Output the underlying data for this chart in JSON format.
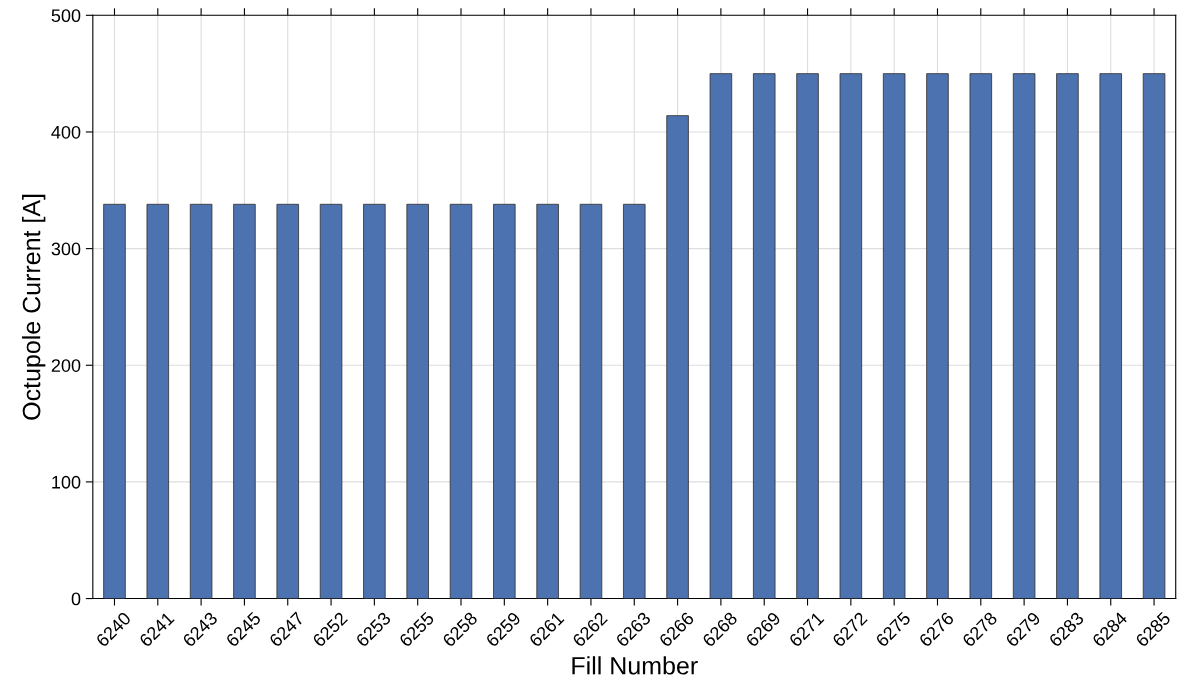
{
  "chart_data": {
    "type": "bar",
    "xlabel": "Fill Number",
    "ylabel": "Octupole Current [A]",
    "categories": [
      "6240",
      "6241",
      "6243",
      "6245",
      "6247",
      "6252",
      "6253",
      "6255",
      "6258",
      "6259",
      "6261",
      "6262",
      "6263",
      "6266",
      "6268",
      "6269",
      "6271",
      "6272",
      "6275",
      "6276",
      "6278",
      "6279",
      "6283",
      "6284",
      "6285"
    ],
    "values": [
      338,
      338,
      338,
      338,
      338,
      338,
      338,
      338,
      338,
      338,
      338,
      338,
      338,
      414,
      450,
      450,
      450,
      450,
      450,
      450,
      450,
      450,
      450,
      450,
      450
    ],
    "color": "#4c72b0",
    "ylim": [
      0,
      500
    ],
    "yticks": [
      0,
      100,
      200,
      300,
      400,
      500
    ],
    "grid": true
  }
}
